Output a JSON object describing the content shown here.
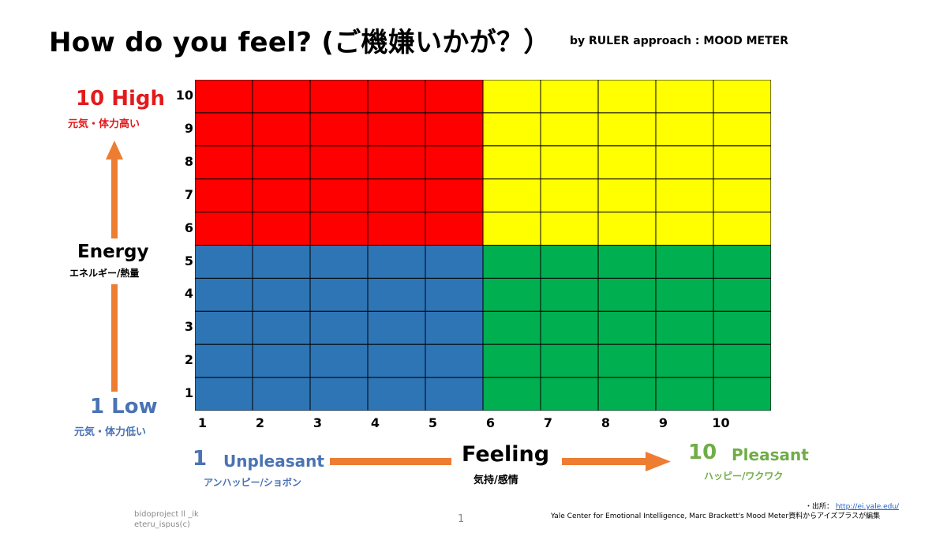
{
  "title": "How do you feel? (ご機嫌いかが？）",
  "subtitle": "by RULER approach : MOOD METER",
  "y_axis": {
    "high_label": "10 High",
    "high_sub": "元気・体力高い",
    "name": "Energy",
    "name_sub": "エネルギー/熱量",
    "low_label": "1  Low",
    "low_sub": "元気・体力低い",
    "ticks": [
      "1",
      "2",
      "3",
      "4",
      "5",
      "6",
      "7",
      "8",
      "9",
      "10"
    ]
  },
  "x_axis": {
    "low_num": "1",
    "low_label": "Unpleasant",
    "low_sub": "アンハッピー/ショボン",
    "name": "Feeling",
    "name_sub": "気持/感情",
    "high_num": "10",
    "high_label": "Pleasant",
    "high_sub": "ハッピー/ワクワク",
    "ticks": [
      "1",
      "2",
      "3",
      "4",
      "5",
      "6",
      "7",
      "8",
      "9",
      "10"
    ]
  },
  "quadrants": {
    "high_energy_unpleasant": "#ff0000",
    "high_energy_pleasant": "#ffff00",
    "low_energy_unpleasant": "#2e75b6",
    "low_energy_pleasant": "#00b050"
  },
  "colors": {
    "arrow": "#ed7d31",
    "grid_line": "#000000"
  },
  "footer": {
    "left_line1": "bidoproject ll _ik",
    "left_line2": "eteru_ispus(c)",
    "page_number": "1",
    "source_prefix": "・出所：",
    "source_url": "http://ei.yale.edu/",
    "source_text": "Yale Center for Emotional Intelligence, Marc Brackett's Mood Meter資料からアイズプラスが編集"
  }
}
